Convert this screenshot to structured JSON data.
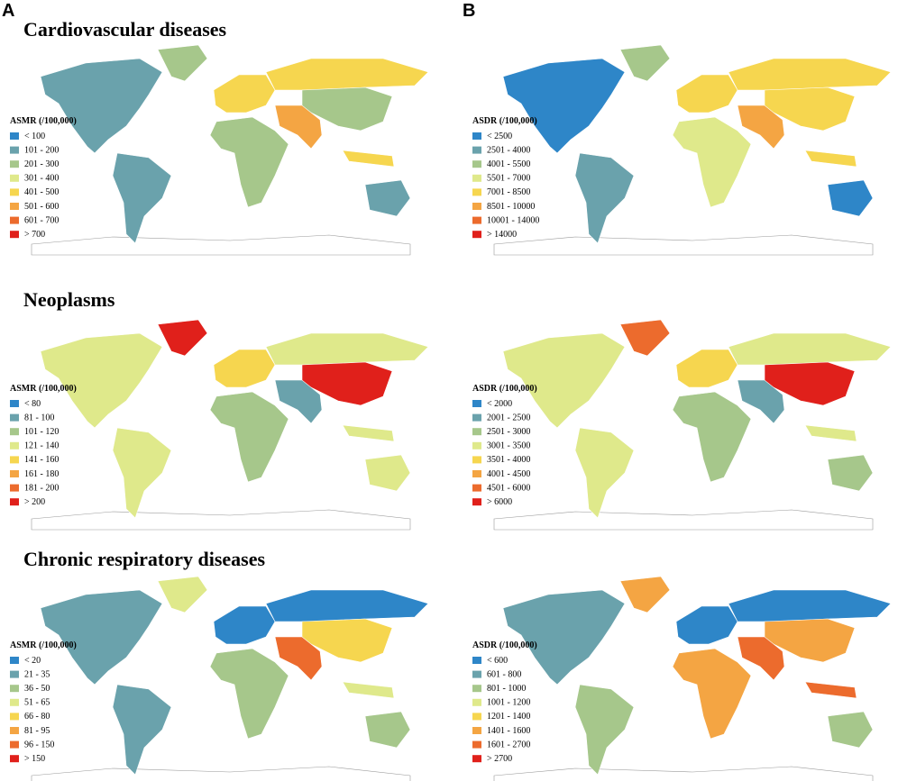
{
  "panel_labels": [
    "A",
    "B"
  ],
  "rows": [
    {
      "title": "Cardiovascular diseases",
      "maps": [
        {
          "legend_title": "ASMR (/100,000)",
          "legend": [
            {
              "label": "< 100",
              "color": "#2e86c8"
            },
            {
              "label": "101 - 200",
              "color": "#6aa2ac"
            },
            {
              "label": "201 - 300",
              "color": "#a6c78b"
            },
            {
              "label": "301 - 400",
              "color": "#dfe98b"
            },
            {
              "label": "401 - 500",
              "color": "#f6d64f"
            },
            {
              "label": "501 - 600",
              "color": "#f4a543"
            },
            {
              "label": "601 - 700",
              "color": "#ec6b2d"
            },
            {
              "label": "> 700",
              "color": "#e0201b"
            }
          ]
        },
        {
          "legend_title": "ASDR (/100,000)",
          "legend": [
            {
              "label": "< 2500",
              "color": "#2e86c8"
            },
            {
              "label": "2501 - 4000",
              "color": "#6aa2ac"
            },
            {
              "label": "4001 - 5500",
              "color": "#a6c78b"
            },
            {
              "label": "5501 - 7000",
              "color": "#dfe98b"
            },
            {
              "label": "7001 - 8500",
              "color": "#f6d64f"
            },
            {
              "label": "8501 - 10000",
              "color": "#f4a543"
            },
            {
              "label": "10001 - 14000",
              "color": "#ec6b2d"
            },
            {
              "label": "> 14000",
              "color": "#e0201b"
            }
          ]
        }
      ]
    },
    {
      "title": "Neoplasms",
      "maps": [
        {
          "legend_title": "ASMR (/100,000)",
          "legend": [
            {
              "label": "< 80",
              "color": "#2e86c8"
            },
            {
              "label": "81 - 100",
              "color": "#6aa2ac"
            },
            {
              "label": "101 - 120",
              "color": "#a6c78b"
            },
            {
              "label": "121 - 140",
              "color": "#dfe98b"
            },
            {
              "label": "141 - 160",
              "color": "#f6d64f"
            },
            {
              "label": "161 - 180",
              "color": "#f4a543"
            },
            {
              "label": "181 - 200",
              "color": "#ec6b2d"
            },
            {
              "label": "> 200",
              "color": "#e0201b"
            }
          ]
        },
        {
          "legend_title": "ASDR (/100,000)",
          "legend": [
            {
              "label": "< 2000",
              "color": "#2e86c8"
            },
            {
              "label": "2001 - 2500",
              "color": "#6aa2ac"
            },
            {
              "label": "2501 - 3000",
              "color": "#a6c78b"
            },
            {
              "label": "3001 - 3500",
              "color": "#dfe98b"
            },
            {
              "label": "3501 - 4000",
              "color": "#f6d64f"
            },
            {
              "label": "4001 - 4500",
              "color": "#f4a543"
            },
            {
              "label": "4501 - 6000",
              "color": "#ec6b2d"
            },
            {
              "label": "> 6000",
              "color": "#e0201b"
            }
          ]
        }
      ]
    },
    {
      "title": "Chronic respiratory diseases",
      "maps": [
        {
          "legend_title": "ASMR (/100,000)",
          "legend": [
            {
              "label": "< 20",
              "color": "#2e86c8"
            },
            {
              "label": "21 - 35",
              "color": "#6aa2ac"
            },
            {
              "label": "36 - 50",
              "color": "#a6c78b"
            },
            {
              "label": "51 - 65",
              "color": "#dfe98b"
            },
            {
              "label": "66 - 80",
              "color": "#f6d64f"
            },
            {
              "label": "81 - 95",
              "color": "#f4a543"
            },
            {
              "label": "96 - 150",
              "color": "#ec6b2d"
            },
            {
              "label": "> 150",
              "color": "#e0201b"
            }
          ]
        },
        {
          "legend_title": "ASDR (/100,000)",
          "legend": [
            {
              "label": "< 600",
              "color": "#2e86c8"
            },
            {
              "label": "601 - 800",
              "color": "#6aa2ac"
            },
            {
              "label": "801 - 1000",
              "color": "#a6c78b"
            },
            {
              "label": "1001 - 1200",
              "color": "#dfe98b"
            },
            {
              "label": "1201 - 1400",
              "color": "#f6d64f"
            },
            {
              "label": "1401 - 1600",
              "color": "#f4a543"
            },
            {
              "label": "1601 - 2700",
              "color": "#ec6b2d"
            },
            {
              "label": "> 2700",
              "color": "#e0201b"
            }
          ]
        }
      ]
    }
  ]
}
